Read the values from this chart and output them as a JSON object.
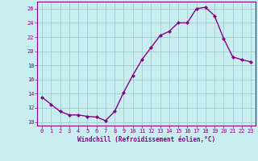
{
  "x": [
    0,
    1,
    2,
    3,
    4,
    5,
    6,
    7,
    8,
    9,
    10,
    11,
    12,
    13,
    14,
    15,
    16,
    17,
    18,
    19,
    20,
    21,
    22,
    23
  ],
  "y": [
    13.5,
    12.5,
    11.5,
    11.0,
    11.0,
    10.8,
    10.7,
    10.2,
    11.5,
    14.2,
    16.6,
    18.8,
    20.5,
    22.2,
    22.8,
    24.0,
    24.0,
    26.0,
    26.2,
    25.0,
    21.8,
    19.2,
    18.8,
    18.5
  ],
  "line_color": "#8B008B",
  "marker": "D",
  "marker_size": 2,
  "bg_color": "#C8EEF0",
  "grid_color": "#A0CDD0",
  "xlabel": "Windchill (Refroidissement éolien,°C)",
  "ylabel_ticks": [
    10,
    12,
    14,
    16,
    18,
    20,
    22,
    24,
    26
  ],
  "xlim": [
    -0.5,
    23.5
  ],
  "ylim": [
    9.5,
    27.0
  ],
  "tick_color": "#8B008B",
  "label_color": "#8B008B",
  "tick_fontsize": 5,
  "xlabel_fontsize": 5.5,
  "linewidth": 1.0
}
